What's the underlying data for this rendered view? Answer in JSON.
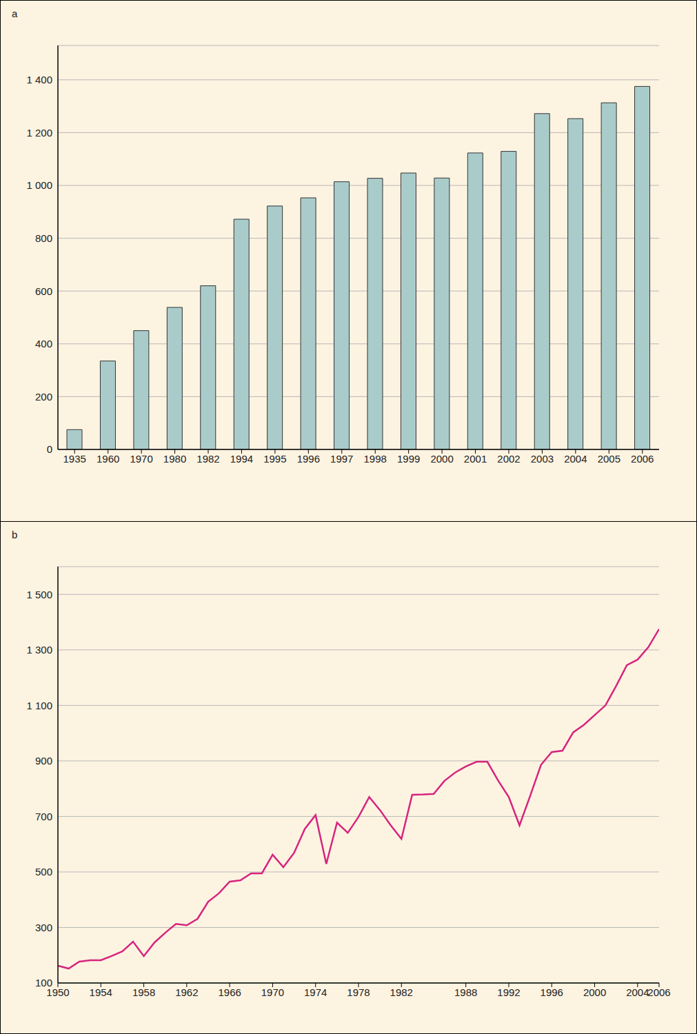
{
  "chart_data": [
    {
      "type": "bar",
      "title": "a",
      "categories": [
        "1935",
        "1960",
        "1970",
        "1980",
        "1982",
        "1994",
        "1995",
        "1996",
        "1997",
        "1998",
        "1999",
        "2000",
        "2001",
        "2002",
        "2003",
        "2004",
        "2005",
        "2006"
      ],
      "values": [
        75,
        335,
        450,
        538,
        620,
        872,
        922,
        953,
        1014,
        1027,
        1047,
        1028,
        1123,
        1129,
        1272,
        1253,
        1313,
        1375
      ],
      "color": "#a9cccb",
      "ylim": [
        0,
        1530
      ],
      "yticks": [
        0,
        200,
        400,
        600,
        800,
        {
          "value": 1000,
          "label": "1 000"
        },
        {
          "value": 1200,
          "label": "1 200"
        },
        {
          "value": 1400,
          "label": "1 400"
        }
      ],
      "grid": true
    },
    {
      "type": "line",
      "title": "b",
      "x": [
        1950,
        1951,
        1952,
        1953,
        1954,
        1955,
        1956,
        1957,
        1958,
        1959,
        1960,
        1961,
        1962,
        1963,
        1964,
        1965,
        1966,
        1967,
        1968,
        1969,
        1970,
        1971,
        1972,
        1973,
        1974,
        1975,
        1976,
        1977,
        1978,
        1979,
        1980,
        1981,
        1982,
        1983,
        1984,
        1985,
        1986,
        1987,
        1988,
        1989,
        1990,
        1991,
        1992,
        1993,
        1994,
        1995,
        1996,
        1997,
        1998,
        1999,
        2000,
        2001,
        2002,
        2003,
        2004,
        2005,
        2006
      ],
      "values": [
        162,
        152,
        177,
        182,
        182,
        197,
        214,
        249,
        197,
        246,
        281,
        313,
        308,
        331,
        393,
        423,
        465,
        470,
        495,
        495,
        562,
        517,
        569,
        655,
        705,
        529,
        678,
        641,
        698,
        770,
        723,
        668,
        619,
        778,
        779,
        781,
        828,
        858,
        880,
        897,
        897,
        830,
        770,
        668,
        775,
        886,
        932,
        937,
        1003,
        1030,
        1065,
        1100,
        1170,
        1245,
        1265,
        1310,
        1375
      ],
      "color": "#d6247e",
      "xlim": [
        1950,
        2006
      ],
      "xticks": [
        1950,
        1954,
        1958,
        1962,
        1966,
        1970,
        1974,
        1978,
        1982,
        1988,
        1992,
        1996,
        2000,
        2004,
        2006
      ],
      "ylim": [
        100,
        1600
      ],
      "yticks": [
        100,
        300,
        500,
        700,
        900,
        {
          "value": 1100,
          "label": "1 100"
        },
        {
          "value": 1300,
          "label": "1 300"
        },
        {
          "value": 1500,
          "label": "1 500"
        }
      ],
      "grid": true
    }
  ]
}
